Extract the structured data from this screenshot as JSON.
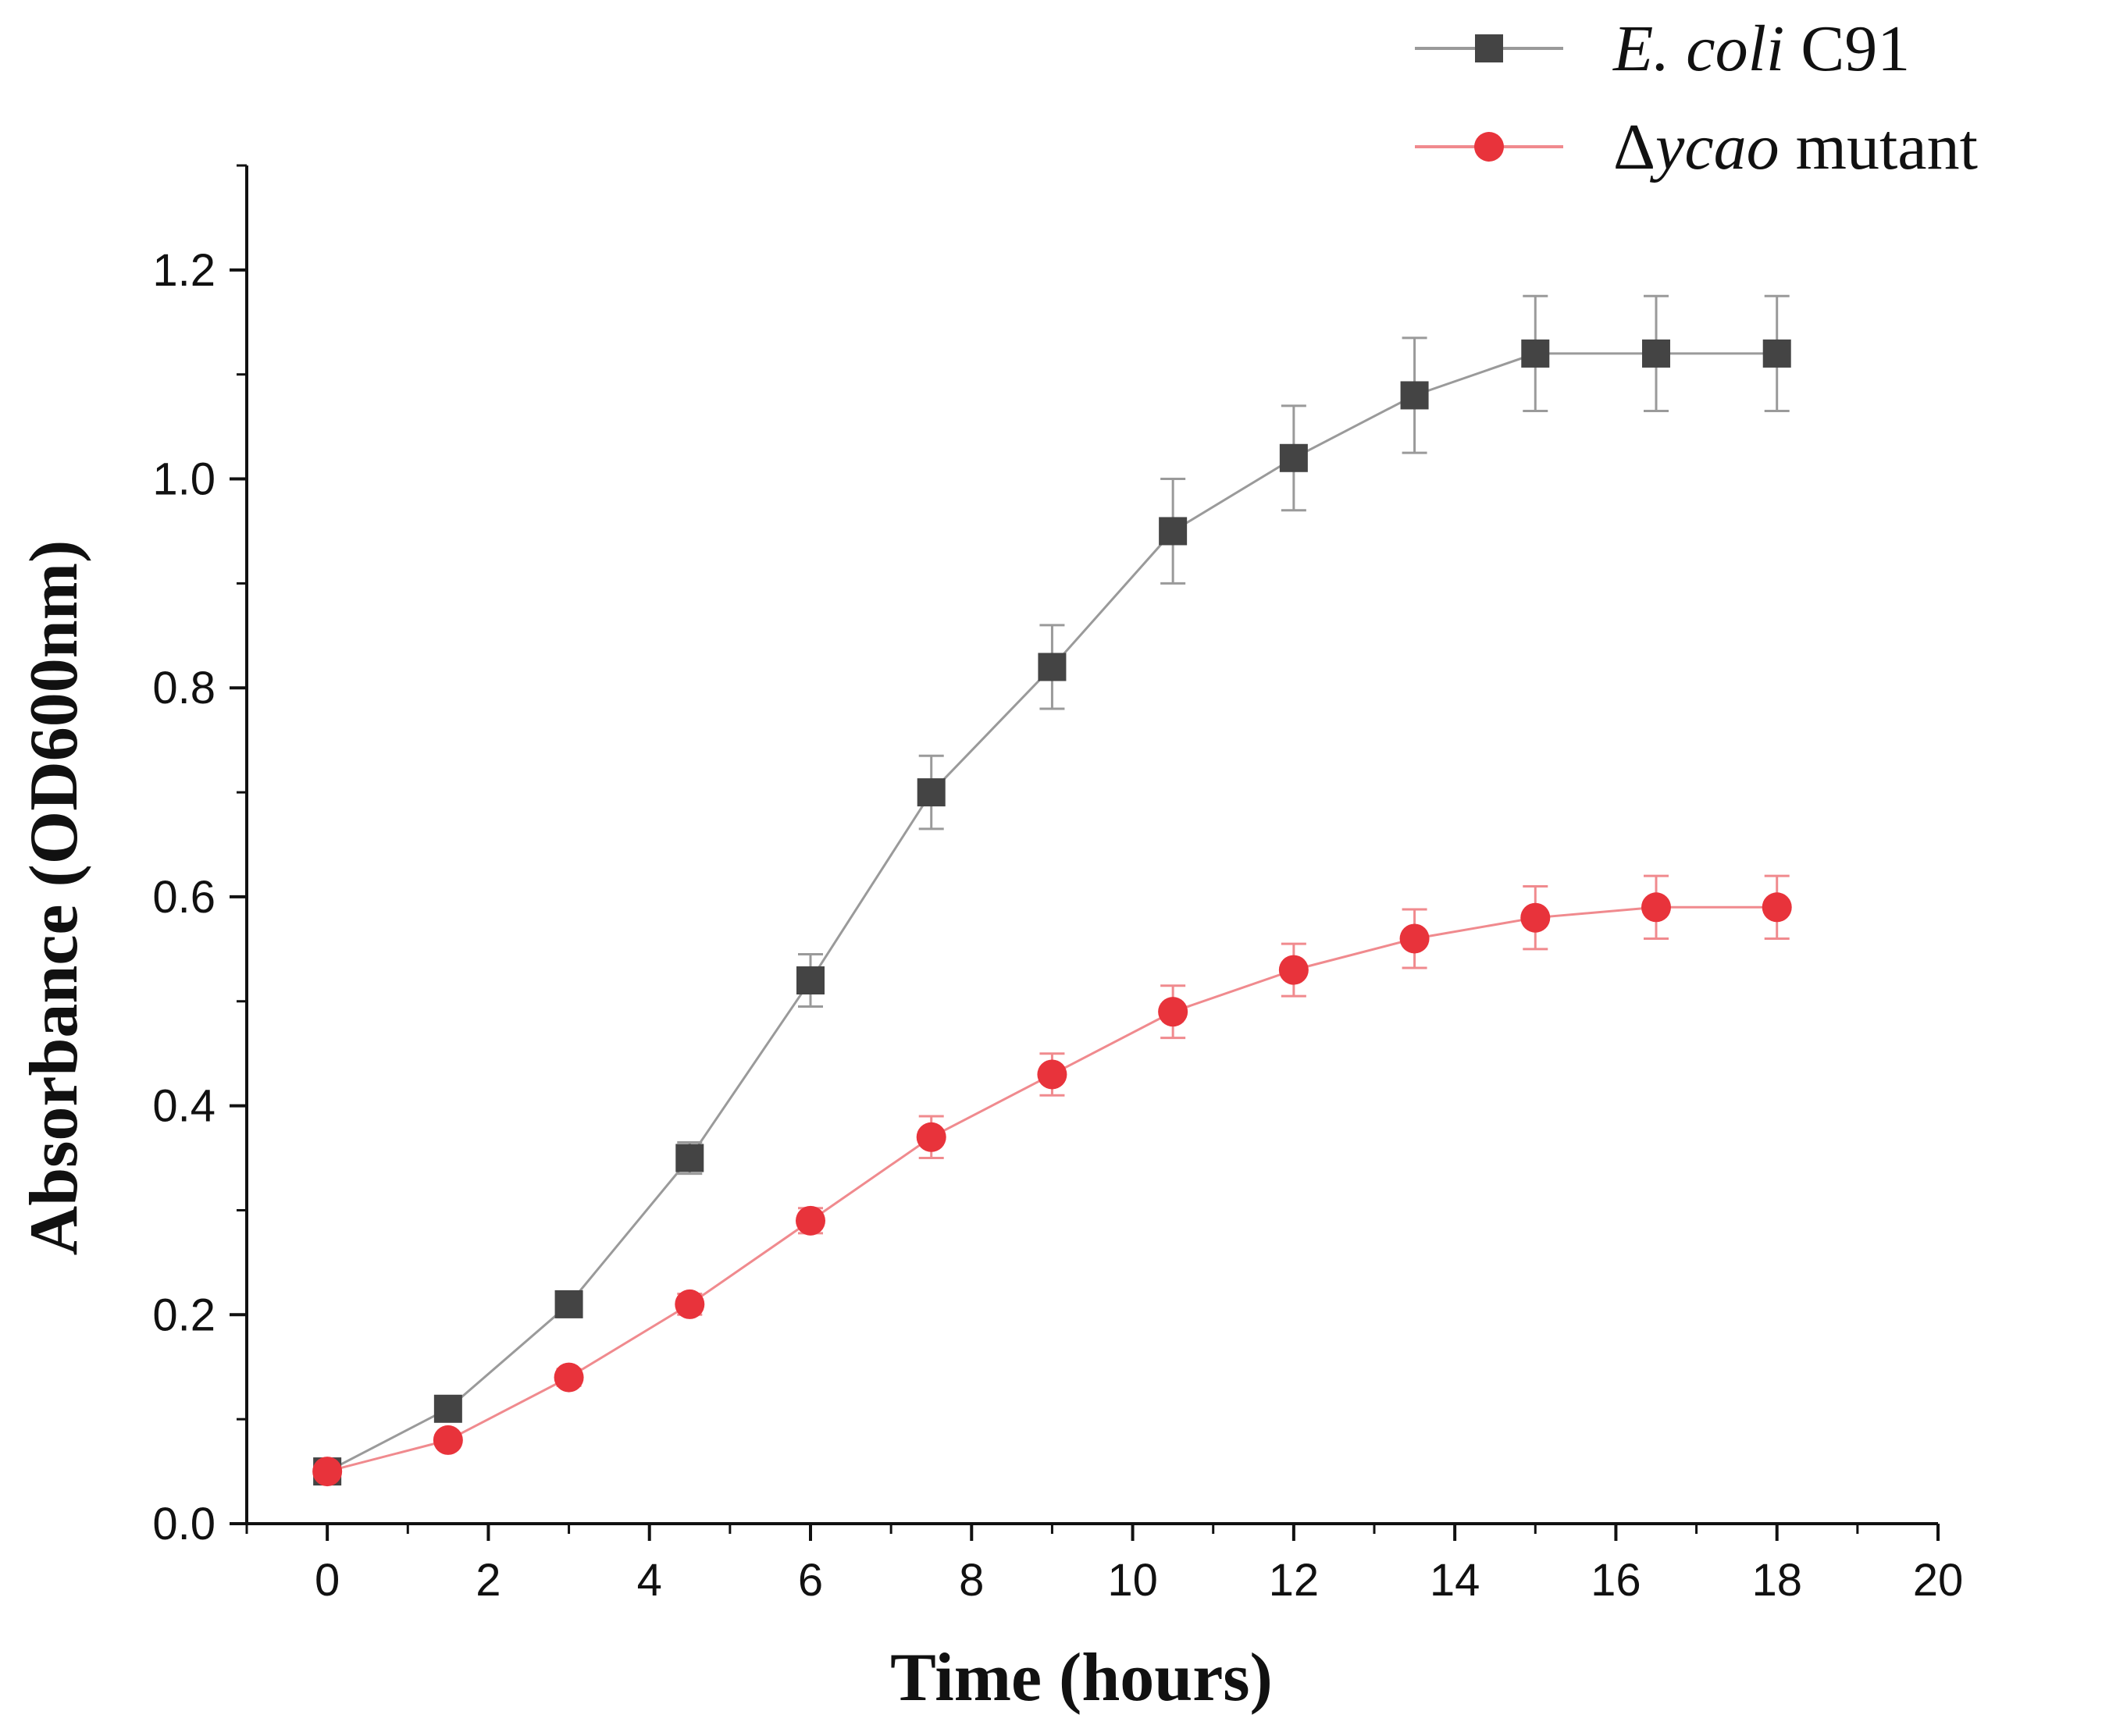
{
  "chart_data": {
    "type": "line",
    "title": "",
    "xlabel": "Time (hours)",
    "ylabel": "Absorbance (OD600nm)",
    "xlim": [
      -1,
      20
    ],
    "ylim": [
      0,
      1.3
    ],
    "xticks": [
      0,
      2,
      4,
      6,
      8,
      10,
      12,
      14,
      16,
      18,
      20
    ],
    "yticks": [
      0.0,
      0.2,
      0.4,
      0.6,
      0.8,
      1.0,
      1.2
    ],
    "xtick_labels": [
      "0",
      "2",
      "4",
      "6",
      "8",
      "10",
      "12",
      "14",
      "16",
      "18",
      "20"
    ],
    "ytick_labels": [
      "0.0",
      "0.2",
      "0.4",
      "0.6",
      "0.8",
      "1.0",
      "1.2"
    ],
    "x": [
      0,
      1.5,
      3,
      4.5,
      6,
      7.5,
      9,
      10.5,
      12,
      13.5,
      15,
      16.5,
      18
    ],
    "grid": false,
    "legend_position": "top-right",
    "series": [
      {
        "name": "E. coli C91",
        "name_italic": "E. coli",
        "name_plain": " C91",
        "marker": "square",
        "color": "#444444",
        "line_color": "#9a9a9a",
        "values": [
          0.05,
          0.11,
          0.21,
          0.35,
          0.52,
          0.7,
          0.82,
          0.95,
          1.02,
          1.08,
          1.12,
          1.12,
          1.12
        ],
        "errors": [
          0.005,
          0.008,
          0.01,
          0.015,
          0.025,
          0.035,
          0.04,
          0.05,
          0.05,
          0.055,
          0.055,
          0.055,
          0.055
        ]
      },
      {
        "name": "Δycao mutant",
        "name_prefix": "Δ",
        "name_italic": "ycao",
        "name_plain": " mutant",
        "marker": "circle",
        "color": "#e8333b",
        "line_color": "#f08a8e",
        "values": [
          0.05,
          0.08,
          0.14,
          0.21,
          0.29,
          0.37,
          0.43,
          0.49,
          0.53,
          0.56,
          0.58,
          0.59,
          0.59
        ],
        "errors": [
          0.005,
          0.006,
          0.008,
          0.01,
          0.012,
          0.02,
          0.02,
          0.025,
          0.025,
          0.028,
          0.03,
          0.03,
          0.03
        ]
      }
    ]
  }
}
